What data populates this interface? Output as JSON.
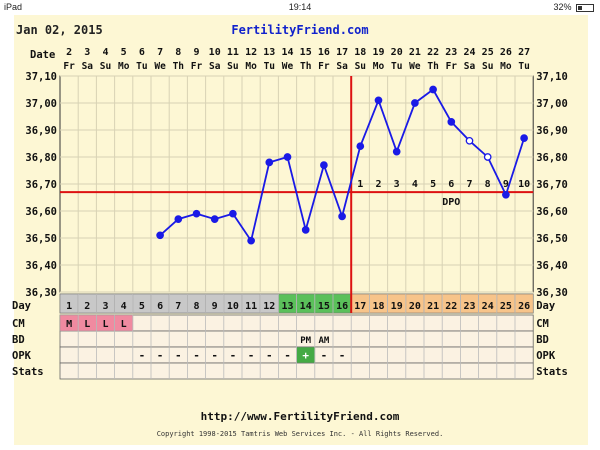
{
  "status_bar": {
    "device": "iPad",
    "time": "19:14",
    "battery": "32%"
  },
  "header": {
    "date": "Jan 02, 2015",
    "site": "FertilityFriend.com"
  },
  "chart_data": {
    "type": "line",
    "title": "",
    "row_labels": {
      "date": "Date",
      "day": "Day",
      "cm": "CM",
      "bd": "BD",
      "opk": "OPK",
      "stats": "Stats"
    },
    "dates": [
      "2",
      "3",
      "4",
      "5",
      "6",
      "7",
      "8",
      "9",
      "10",
      "11",
      "12",
      "13",
      "14",
      "15",
      "16",
      "17",
      "18",
      "19",
      "20",
      "21",
      "22",
      "23",
      "24",
      "25",
      "26",
      "27"
    ],
    "weekdays": [
      "Fr",
      "Sa",
      "Su",
      "Mo",
      "Tu",
      "We",
      "Th",
      "Fr",
      "Sa",
      "Su",
      "Mo",
      "Tu",
      "We",
      "Th",
      "Fr",
      "Sa",
      "Su",
      "Mo",
      "Tu",
      "We",
      "Th",
      "Fr",
      "Sa",
      "Su",
      "Mo",
      "Tu"
    ],
    "cycle_days": [
      "1",
      "2",
      "3",
      "4",
      "5",
      "6",
      "7",
      "8",
      "9",
      "10",
      "11",
      "12",
      "13",
      "14",
      "15",
      "16",
      "17",
      "18",
      "19",
      "20",
      "21",
      "22",
      "23",
      "24",
      "25",
      "26"
    ],
    "ylim": [
      36.3,
      37.1
    ],
    "y_ticks": [
      "37,10",
      "37,00",
      "36,90",
      "36,80",
      "36,70",
      "36,60",
      "36,50",
      "36,40",
      "36,30"
    ],
    "temperatures": [
      null,
      null,
      null,
      null,
      null,
      36.51,
      36.57,
      36.59,
      36.57,
      36.59,
      36.49,
      36.78,
      36.8,
      36.53,
      36.77,
      36.58,
      36.84,
      37.01,
      36.82,
      37.0,
      37.05,
      36.93,
      36.86,
      36.8,
      36.66,
      36.87
    ],
    "open_points": [
      22,
      23
    ],
    "coverline": 36.67,
    "ovulation_day_index": 15,
    "dpo_label": "DPO",
    "dpo_numbers": [
      "1",
      "2",
      "3",
      "4",
      "5",
      "6",
      "7",
      "8",
      "9",
      "10"
    ],
    "cm": [
      "M",
      "L",
      "L",
      "L",
      "",
      "",
      "",
      "",
      "",
      "",
      "",
      "",
      "",
      "",
      "",
      "",
      "",
      "",
      "",
      "",
      "",
      "",
      "",
      "",
      "",
      ""
    ],
    "bd": [
      "",
      "",
      "",
      "",
      "",
      "",
      "",
      "",
      "",
      "",
      "",
      "",
      "",
      "PM",
      "AM",
      "",
      "",
      "",
      "",
      "",
      "",
      "",
      "",
      "",
      "",
      ""
    ],
    "opk": [
      "",
      "",
      "",
      "",
      "-",
      "-",
      "-",
      "-",
      "-",
      "-",
      "-",
      "-",
      "-",
      "+",
      "-",
      "-",
      "",
      "",
      "",
      "",
      "",
      "",
      "",
      "",
      "",
      ""
    ],
    "colors": {
      "background": "#fdf7d4",
      "grid": "#d8d2b4",
      "temp_line": "#1a1ae6",
      "coverline": "#dd1111",
      "day_gray": "#c8c8c8",
      "day_green": "#5ac05a",
      "day_orange": "#f7c48a",
      "cm_pink": "#f08aa0",
      "opk_green": "#44aa44",
      "row_bg": "#fbf2e2",
      "site_blue": "#1122cc"
    }
  },
  "footer": {
    "url": "http://www.FertilityFriend.com",
    "copyright": "Copyright 1998-2015 Tamtris Web Services Inc. - All Rights Reserved."
  }
}
